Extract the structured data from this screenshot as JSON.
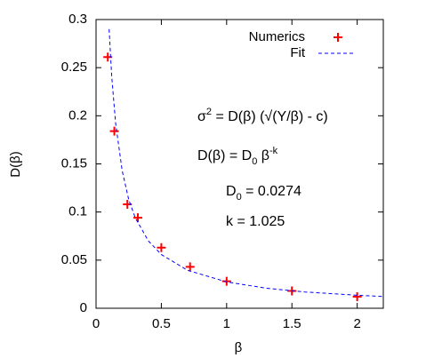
{
  "chart_data": {
    "type": "scatter",
    "xlabel": "β",
    "ylabel": "D(β)",
    "xlim": [
      0,
      2.2
    ],
    "ylim": [
      0,
      0.3
    ],
    "xticks": [
      0,
      0.5,
      1,
      1.5,
      2
    ],
    "yticks": [
      0,
      0.05,
      0.1,
      0.15,
      0.2,
      0.25,
      0.3
    ],
    "legend": "top-right",
    "series": [
      {
        "name": "Numerics",
        "type": "scatter",
        "color": "#ff0000",
        "x": [
          0.09,
          0.14,
          0.24,
          0.32,
          0.5,
          0.72,
          1.0,
          1.5,
          2.0
        ],
        "values": [
          0.261,
          0.184,
          0.108,
          0.094,
          0.063,
          0.043,
          0.028,
          0.018,
          0.012
        ]
      },
      {
        "name": "Fit",
        "type": "line",
        "color": "#0000ff",
        "x": [
          0.1,
          0.12,
          0.15,
          0.2,
          0.25,
          0.3,
          0.4,
          0.5,
          0.7,
          1.0,
          1.3,
          1.6,
          2.0,
          2.2
        ],
        "values": [
          0.29,
          0.241,
          0.192,
          0.143,
          0.113,
          0.0941,
          0.0701,
          0.0558,
          0.0395,
          0.0274,
          0.0209,
          0.0169,
          0.0135,
          0.0122
        ]
      }
    ],
    "annotations": [
      [
        {
          "text": "σ"
        },
        {
          "text": "2",
          "baseline": "super"
        },
        {
          "text": " = D(β) (√(Y/β) - c)"
        }
      ],
      [
        {
          "text": "D(β) = D"
        },
        {
          "text": "0",
          "baseline": "sub"
        },
        {
          "text": " β"
        },
        {
          "text": "-k",
          "baseline": "super"
        }
      ],
      [
        {
          "text": "D"
        },
        {
          "text": "0",
          "baseline": "sub"
        },
        {
          "text": " = 0.0274"
        }
      ],
      [
        {
          "text": "k = 1.025"
        }
      ]
    ]
  }
}
